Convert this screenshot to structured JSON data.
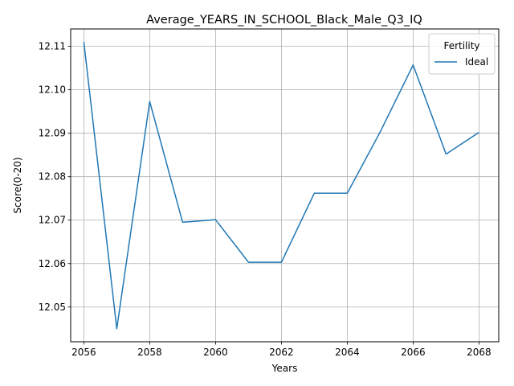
{
  "chart_data": {
    "type": "line",
    "title": "Average_YEARS_IN_SCHOOL_Black_Male_Q3_IQ",
    "xlabel": "Years",
    "ylabel": "Score(0-20)",
    "xlim": [
      2055.6,
      2068.6
    ],
    "ylim": [
      12.042,
      12.114
    ],
    "xticks": [
      2056,
      2058,
      2060,
      2062,
      2064,
      2066,
      2068
    ],
    "yticks": [
      12.05,
      12.06,
      12.07,
      12.08,
      12.09,
      12.1,
      12.11
    ],
    "ytick_labels": [
      "12.05",
      "12.06",
      "12.07",
      "12.08",
      "12.09",
      "12.10",
      "12.11"
    ],
    "grid": true,
    "legend": {
      "title": "Fertility",
      "placement": "top-right"
    },
    "x": [
      2056,
      2057,
      2058,
      2059,
      2060,
      2061,
      2062,
      2063,
      2064,
      2065,
      2066,
      2067,
      2068
    ],
    "series": [
      {
        "name": "Ideal",
        "color": "#1f77b4",
        "values": [
          12.111,
          12.045,
          12.0973,
          12.0695,
          12.0701,
          12.0603,
          12.0603,
          12.0762,
          12.0762,
          12.0903,
          12.1057,
          12.0852,
          12.0902
        ]
      }
    ]
  }
}
